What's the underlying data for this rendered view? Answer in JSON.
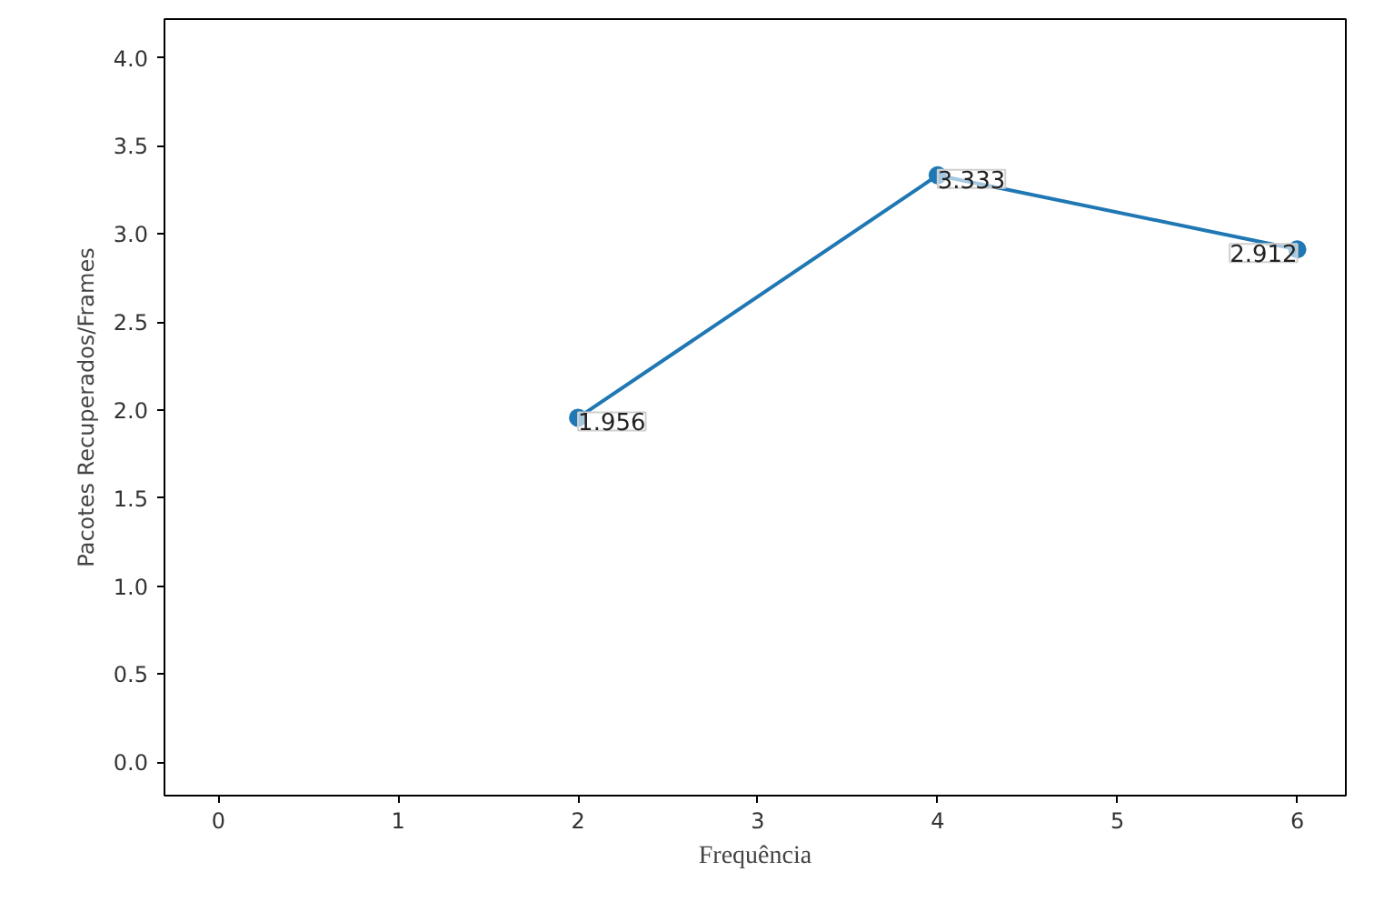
{
  "chart_data": {
    "type": "line",
    "xlabel": "Frequência",
    "ylabel": "Pacotes Recuperados/Frames",
    "x": [
      2,
      4,
      6
    ],
    "series": [
      {
        "color": "#1f77b4",
        "values": [
          1.956,
          3.333,
          2.912
        ]
      }
    ],
    "xlim": [
      -0.3,
      6.27
    ],
    "xticks": [
      0,
      1,
      2,
      3,
      4,
      5,
      6
    ],
    "ylim": [
      -0.19,
      4.22
    ],
    "yticks": [
      {
        "value": 0,
        "label": "0.0"
      },
      0.5,
      {
        "value": 1,
        "label": "1.0"
      },
      1.5,
      {
        "value": 2,
        "label": "2.0"
      },
      2.5,
      {
        "value": 3,
        "label": "3.0"
      },
      3.5,
      {
        "value": 4,
        "label": "4.0"
      }
    ],
    "marker": "circle",
    "data_labels": true
  }
}
